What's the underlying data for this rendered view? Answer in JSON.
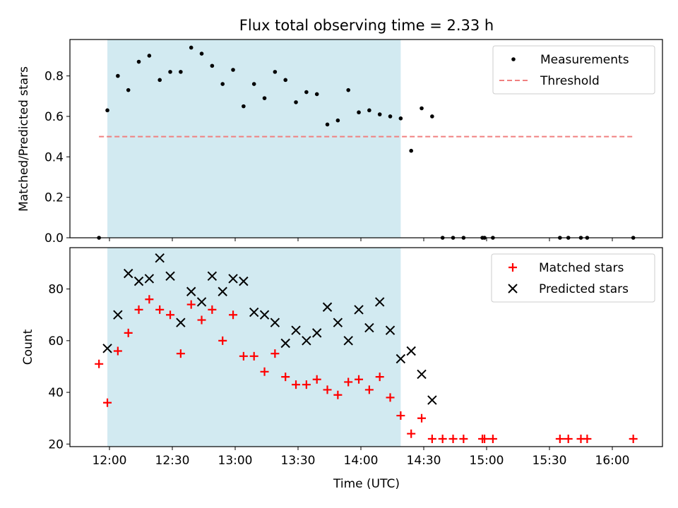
{
  "title": "Flux total observing time = 2.33 h",
  "colors": {
    "shade": "#add8e6",
    "threshold": "#f08080",
    "measurement": "#000000",
    "matched": "#ff0000",
    "predicted": "#000000"
  },
  "chart_data": [
    {
      "type": "scatter",
      "ylabel": "Matched/Predicted stars",
      "xlabel": "",
      "ylim": [
        0,
        0.98
      ],
      "yticks": [
        "0.0",
        "0.2",
        "0.4",
        "0.6",
        "0.8"
      ],
      "shaded_span": [
        "11:59",
        "14:19"
      ],
      "legend_position": "top-right",
      "series": [
        {
          "name": "Measurements",
          "marker": "dot",
          "points": [
            [
              "11:55",
              0.0
            ],
            [
              "11:59",
              0.63
            ],
            [
              "12:04",
              0.8
            ],
            [
              "12:09",
              0.73
            ],
            [
              "12:14",
              0.87
            ],
            [
              "12:19",
              0.9
            ],
            [
              "12:24",
              0.78
            ],
            [
              "12:29",
              0.82
            ],
            [
              "12:34",
              0.82
            ],
            [
              "12:39",
              0.94
            ],
            [
              "12:44",
              0.91
            ],
            [
              "12:49",
              0.85
            ],
            [
              "12:54",
              0.76
            ],
            [
              "12:59",
              0.83
            ],
            [
              "13:04",
              0.65
            ],
            [
              "13:09",
              0.76
            ],
            [
              "13:14",
              0.69
            ],
            [
              "13:19",
              0.82
            ],
            [
              "13:24",
              0.78
            ],
            [
              "13:29",
              0.67
            ],
            [
              "13:34",
              0.72
            ],
            [
              "13:39",
              0.71
            ],
            [
              "13:44",
              0.56
            ],
            [
              "13:49",
              0.58
            ],
            [
              "13:54",
              0.73
            ],
            [
              "13:59",
              0.62
            ],
            [
              "14:04",
              0.63
            ],
            [
              "14:09",
              0.61
            ],
            [
              "14:14",
              0.6
            ],
            [
              "14:19",
              0.59
            ],
            [
              "14:24",
              0.43
            ],
            [
              "14:29",
              0.64
            ],
            [
              "14:34",
              0.6
            ],
            [
              "14:39",
              0.0
            ],
            [
              "14:44",
              0.0
            ],
            [
              "14:49",
              0.0
            ],
            [
              "14:58",
              0.0
            ],
            [
              "14:59",
              0.0
            ],
            [
              "15:03",
              0.0
            ],
            [
              "15:35",
              0.0
            ],
            [
              "15:39",
              0.0
            ],
            [
              "15:45",
              0.0
            ],
            [
              "15:48",
              0.0
            ],
            [
              "16:10",
              0.0
            ]
          ]
        },
        {
          "name": "Threshold",
          "marker": "dashed-line",
          "x": [
            "11:55",
            "16:10"
          ],
          "y": [
            0.5,
            0.5
          ]
        }
      ]
    },
    {
      "type": "scatter",
      "ylabel": "Count",
      "xlabel": "Time (UTC)",
      "ylim": [
        19,
        96
      ],
      "yticks": [
        "20",
        "40",
        "60",
        "80"
      ],
      "xticks": [
        "12:00",
        "12:30",
        "13:00",
        "13:30",
        "14:00",
        "14:30",
        "15:00",
        "15:30",
        "16:00"
      ],
      "shaded_span": [
        "11:59",
        "14:19"
      ],
      "legend_position": "top-right",
      "series": [
        {
          "name": "Matched stars",
          "marker": "plus",
          "points": [
            [
              "11:55",
              51
            ],
            [
              "11:59",
              36
            ],
            [
              "12:04",
              56
            ],
            [
              "12:09",
              63
            ],
            [
              "12:14",
              72
            ],
            [
              "12:19",
              76
            ],
            [
              "12:24",
              72
            ],
            [
              "12:29",
              70
            ],
            [
              "12:34",
              55
            ],
            [
              "12:39",
              74
            ],
            [
              "12:44",
              68
            ],
            [
              "12:49",
              72
            ],
            [
              "12:54",
              60
            ],
            [
              "12:59",
              70
            ],
            [
              "13:04",
              54
            ],
            [
              "13:09",
              54
            ],
            [
              "13:14",
              48
            ],
            [
              "13:19",
              55
            ],
            [
              "13:24",
              46
            ],
            [
              "13:29",
              43
            ],
            [
              "13:34",
              43
            ],
            [
              "13:39",
              45
            ],
            [
              "13:44",
              41
            ],
            [
              "13:49",
              39
            ],
            [
              "13:54",
              44
            ],
            [
              "13:59",
              45
            ],
            [
              "14:04",
              41
            ],
            [
              "14:09",
              46
            ],
            [
              "14:14",
              38
            ],
            [
              "14:19",
              31
            ],
            [
              "14:24",
              24
            ],
            [
              "14:29",
              30
            ],
            [
              "14:34",
              22
            ],
            [
              "14:39",
              22
            ],
            [
              "14:44",
              22
            ],
            [
              "14:49",
              22
            ],
            [
              "14:58",
              22
            ],
            [
              "14:59",
              22
            ],
            [
              "15:03",
              22
            ],
            [
              "15:35",
              22
            ],
            [
              "15:39",
              22
            ],
            [
              "15:45",
              22
            ],
            [
              "15:48",
              22
            ],
            [
              "16:10",
              22
            ]
          ]
        },
        {
          "name": "Predicted stars",
          "marker": "x",
          "points": [
            [
              "11:59",
              57
            ],
            [
              "12:04",
              70
            ],
            [
              "12:09",
              86
            ],
            [
              "12:14",
              83
            ],
            [
              "12:19",
              84
            ],
            [
              "12:24",
              92
            ],
            [
              "12:29",
              85
            ],
            [
              "12:34",
              67
            ],
            [
              "12:39",
              79
            ],
            [
              "12:44",
              75
            ],
            [
              "12:49",
              85
            ],
            [
              "12:54",
              79
            ],
            [
              "12:59",
              84
            ],
            [
              "13:04",
              83
            ],
            [
              "13:09",
              71
            ],
            [
              "13:14",
              70
            ],
            [
              "13:19",
              67
            ],
            [
              "13:24",
              59
            ],
            [
              "13:29",
              64
            ],
            [
              "13:34",
              60
            ],
            [
              "13:39",
              63
            ],
            [
              "13:44",
              73
            ],
            [
              "13:49",
              67
            ],
            [
              "13:54",
              60
            ],
            [
              "13:59",
              72
            ],
            [
              "14:04",
              65
            ],
            [
              "14:09",
              75
            ],
            [
              "14:14",
              64
            ],
            [
              "14:19",
              53
            ],
            [
              "14:24",
              56
            ],
            [
              "14:29",
              47
            ],
            [
              "14:34",
              37
            ]
          ]
        }
      ]
    }
  ]
}
